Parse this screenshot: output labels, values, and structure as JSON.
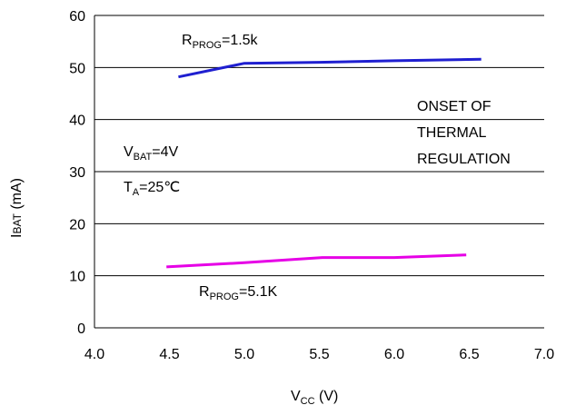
{
  "chart_data": {
    "type": "line",
    "x_ticks": [
      "4.0",
      "4.5",
      "5.0",
      "5.5",
      "6.0",
      "6.5",
      "7.0"
    ],
    "y_ticks": [
      "0",
      "10",
      "20",
      "30",
      "40",
      "50",
      "60"
    ],
    "xlim": [
      4.0,
      7.0
    ],
    "ylim": [
      0,
      60
    ],
    "grid": "horizontal",
    "xlabel": {
      "main": "V",
      "sub": "CC",
      "unit": " (V)"
    },
    "ylabel": {
      "main": "I",
      "sub": "BAT",
      "unit": " (mA)"
    },
    "series": [
      {
        "color": "#1f1fd0",
        "points": [
          [
            4.56,
            48.2
          ],
          [
            5.0,
            50.8
          ],
          [
            5.5,
            51.0
          ],
          [
            6.0,
            51.3
          ],
          [
            6.58,
            51.6
          ]
        ]
      },
      {
        "color": "#e600e6",
        "points": [
          [
            4.48,
            11.7
          ],
          [
            5.0,
            12.5
          ],
          [
            5.52,
            13.5
          ],
          [
            6.0,
            13.5
          ],
          [
            6.48,
            14.0
          ]
        ]
      }
    ],
    "annotations": {
      "rprog_top": {
        "main": "R",
        "sub": "PROG",
        "rest": "=1.5k"
      },
      "rprog_bottom": {
        "main": "R",
        "sub": "PROG",
        "rest": "=5.1K"
      },
      "vbat": {
        "main": "V",
        "sub": "BAT",
        "rest": "=4V"
      },
      "ta": {
        "main": "T",
        "sub": "A",
        "rest": "=25℃"
      },
      "onset_lines": [
        "ONSET OF",
        "THERMAL",
        "REGULATION"
      ]
    }
  }
}
